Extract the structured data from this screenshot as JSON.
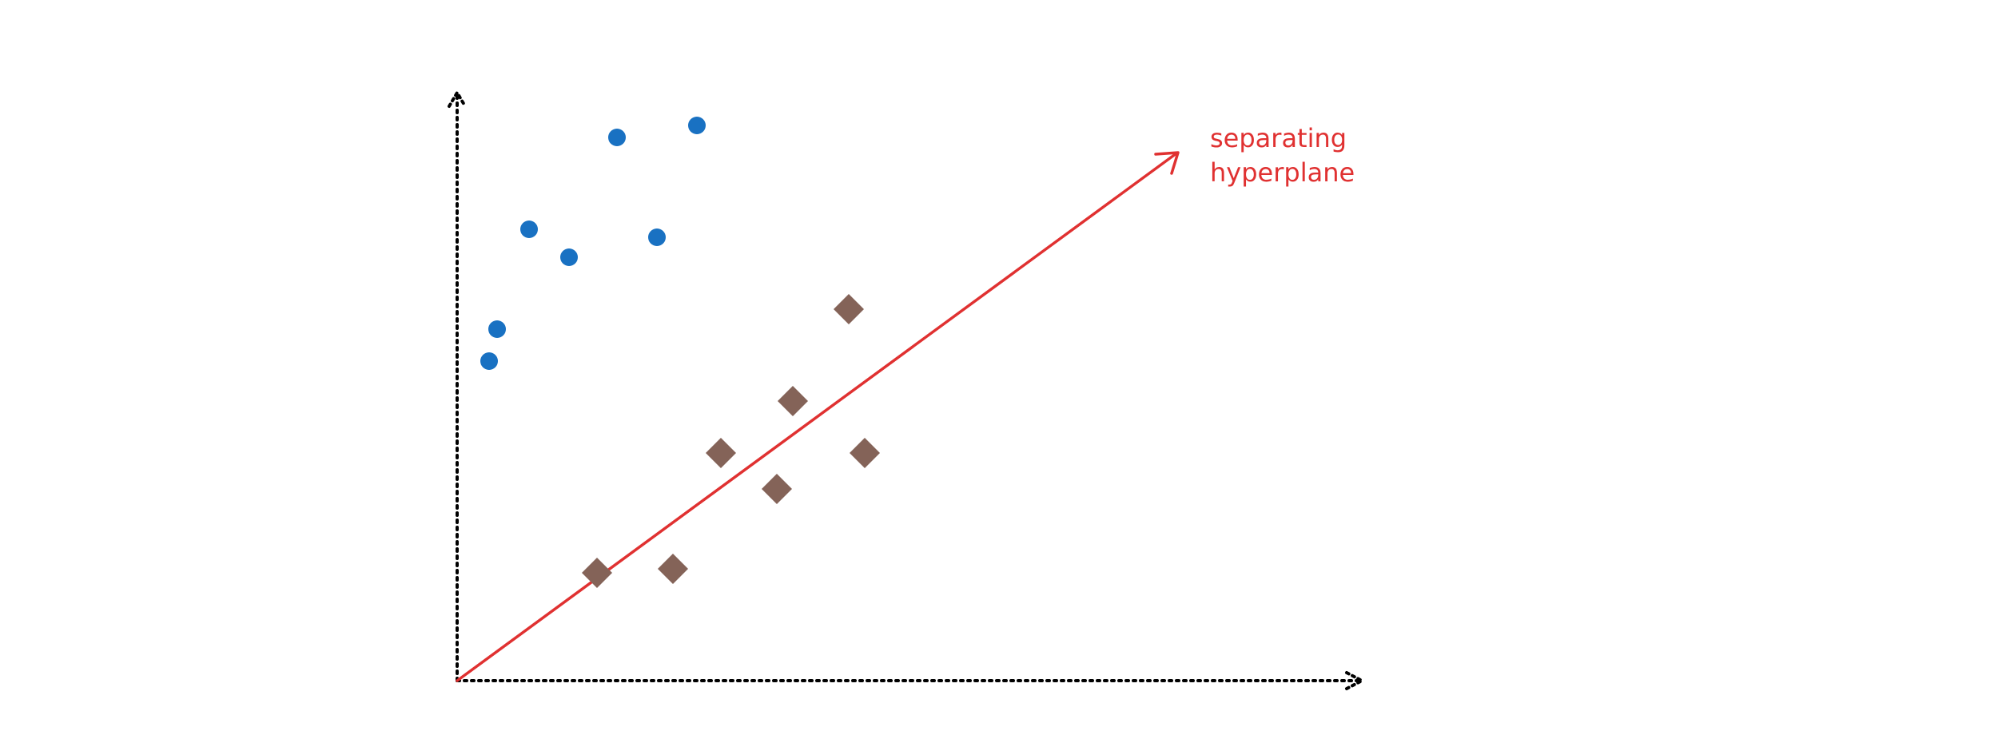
{
  "annotation": {
    "line1": "separating",
    "line2": "hyperplane"
  },
  "colors": {
    "circle_class": "#1971c2",
    "diamond_class": "#846358",
    "hyperplane": "#e03131",
    "axes": "#000000"
  },
  "points": {
    "circles": [
      {
        "x": 1,
        "y": 8.8
      },
      {
        "x": 0.8,
        "y": 8
      },
      {
        "x": 1.8,
        "y": 11.3
      },
      {
        "x": 2.8,
        "y": 10.6
      },
      {
        "x": 4,
        "y": 13.6
      },
      {
        "x": 5,
        "y": 11.1
      },
      {
        "x": 6,
        "y": 13.9
      }
    ],
    "diamonds": [
      {
        "x": 3.5,
        "y": 2.7
      },
      {
        "x": 5.4,
        "y": 2.8
      },
      {
        "x": 6.6,
        "y": 5.7
      },
      {
        "x": 8,
        "y": 4.8
      },
      {
        "x": 8.4,
        "y": 7
      },
      {
        "x": 9.8,
        "y": 9.3
      },
      {
        "x": 10.2,
        "y": 5.7
      }
    ]
  }
}
